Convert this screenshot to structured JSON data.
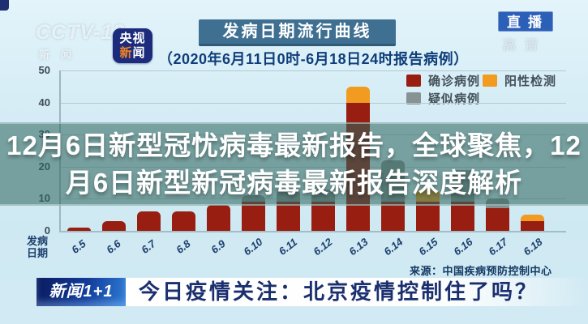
{
  "watermark": {
    "channel": "CCTV-13",
    "sub": "新闻"
  },
  "app_icon": {
    "line1": "央视",
    "line2_first": "新",
    "line2_rest": "闻"
  },
  "live_badge": "直播",
  "hd_watermark": "高清",
  "chart": {
    "title": "发病日期流行曲线",
    "subtitle": "（2020年6月11日0时-6月18日24时报告病例）",
    "axis_caption": "发病日期",
    "source": "来源：中国疾病预防控制中心"
  },
  "chart_data": {
    "type": "bar",
    "stacked": true,
    "title": "发病日期流行曲线",
    "subtitle": "（2020年6月11日0时-6月18日24时报告病例）",
    "xlabel": "发病日期",
    "ylabel": "",
    "ylim": [
      0,
      50
    ],
    "yticks": [
      0,
      10,
      20,
      30,
      40,
      50
    ],
    "grid": true,
    "legend_position": "top-right",
    "categories": [
      "6.5",
      "6.6",
      "6.7",
      "6.8",
      "6.9",
      "6.10",
      "6.11",
      "6.12",
      "6.13",
      "6.14",
      "6.15",
      "6.16",
      "6.17",
      "6.18"
    ],
    "series": [
      {
        "name": "确诊病例",
        "color": "#971e10",
        "values": [
          1,
          3,
          6,
          6,
          8,
          9,
          9,
          9,
          40,
          9,
          9,
          9,
          7,
          3
        ]
      },
      {
        "name": "阳性检测",
        "color": "#f19b20",
        "values": [
          0,
          0,
          0,
          0,
          0,
          0,
          0,
          0,
          5,
          0,
          4,
          0,
          0,
          2
        ]
      },
      {
        "name": "疑似病例",
        "color": "#879294",
        "values": [
          0,
          0,
          0,
          0,
          0,
          2,
          4,
          4,
          0,
          13,
          0,
          10,
          3,
          0
        ]
      }
    ],
    "source": "来源：中国疾病预防控制中心"
  },
  "overlay": {
    "line1": "12月6日新型冠忧病毒最新报告，全球聚焦，12",
    "line2": "月6日新型新冠病毒最新报告深度解析"
  },
  "bottom_banner": {
    "logo": "新闻1+1",
    "headline": "今日疫情关注：北京疫情控制住了吗？"
  }
}
